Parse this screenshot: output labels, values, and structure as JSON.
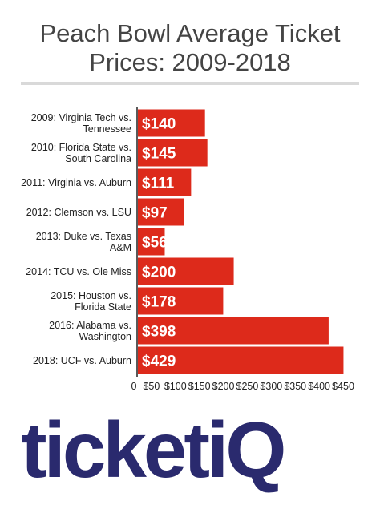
{
  "chart_data": {
    "type": "bar",
    "orientation": "horizontal",
    "title_line1": "Peach Bowl Average Ticket",
    "title_line2": "Prices: 2009-2018",
    "categories": [
      [
        "2009: Virginia Tech vs.",
        "Tennessee"
      ],
      [
        "2010: Florida State vs.",
        "South Carolina"
      ],
      [
        "2011: Virginia vs. Auburn"
      ],
      [
        "2012: Clemson vs. LSU"
      ],
      [
        "2013: Duke vs. Texas",
        "A&M"
      ],
      [
        "2014: TCU vs. Ole Miss"
      ],
      [
        "2015: Houston vs.",
        "Florida State"
      ],
      [
        "2016: Alabama vs.",
        "Washington"
      ],
      [
        "2018: UCF vs. Auburn"
      ]
    ],
    "values": [
      140,
      145,
      111,
      97,
      56,
      200,
      178,
      398,
      429
    ],
    "value_labels": [
      "$140",
      "$145",
      "$111",
      "$97",
      "$56",
      "$200",
      "$178",
      "$398",
      "$429"
    ],
    "xticks": [
      0,
      50,
      100,
      150,
      200,
      250,
      300,
      350,
      400,
      450
    ],
    "xtick_labels": [
      "0",
      "$50",
      "$100",
      "$150",
      "$200",
      "$250",
      "$300",
      "$350",
      "$400",
      "$450"
    ],
    "xlim": [
      0,
      450
    ],
    "bar_color": "#dd2a1b",
    "grid": false,
    "legend": "none"
  },
  "logo": {
    "main": "ticket",
    "last": "iQ",
    "main_color": "#2a2a6e",
    "accent_color": "#e8502f"
  }
}
